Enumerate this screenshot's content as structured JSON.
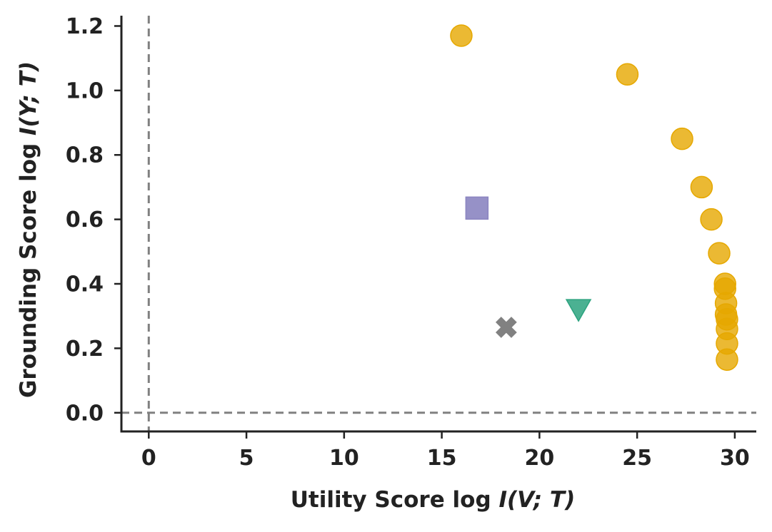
{
  "chart_data": {
    "type": "scatter",
    "xlabel": {
      "prefix": "Utility Score log ",
      "math": "I(V; T)"
    },
    "ylabel": {
      "prefix": "Grounding Score log ",
      "math": "I(Y; T)"
    },
    "xlim": [
      -1.4,
      31.1
    ],
    "ylim": [
      -0.058,
      1.232
    ],
    "xticks": [
      0,
      5,
      10,
      15,
      20,
      25,
      30
    ],
    "yticks": [
      0.0,
      0.2,
      0.4,
      0.6,
      0.8,
      1.0,
      1.2
    ],
    "xtick_labels": [
      "0",
      "5",
      "10",
      "15",
      "20",
      "25",
      "30"
    ],
    "ytick_labels": [
      "0.0",
      "0.2",
      "0.4",
      "0.6",
      "0.8",
      "1.0",
      "1.2"
    ],
    "reference_lines": {
      "vertical_x": 0,
      "horizontal_y": 0,
      "style": "dashed",
      "color": "#808080"
    },
    "grid": false,
    "legend": "none",
    "series": [
      {
        "marker": "circle",
        "color": "#E6A800",
        "points": [
          {
            "x": 16.0,
            "y": 1.17
          },
          {
            "x": 24.5,
            "y": 1.05
          },
          {
            "x": 27.3,
            "y": 0.85
          },
          {
            "x": 28.3,
            "y": 0.7
          },
          {
            "x": 28.8,
            "y": 0.6
          },
          {
            "x": 29.2,
            "y": 0.495
          },
          {
            "x": 29.5,
            "y": 0.4
          },
          {
            "x": 29.5,
            "y": 0.385
          },
          {
            "x": 29.55,
            "y": 0.34
          },
          {
            "x": 29.55,
            "y": 0.305
          },
          {
            "x": 29.6,
            "y": 0.29
          },
          {
            "x": 29.6,
            "y": 0.26
          },
          {
            "x": 29.6,
            "y": 0.215
          },
          {
            "x": 29.6,
            "y": 0.165
          }
        ]
      },
      {
        "marker": "square",
        "color": "#8B85C1",
        "points": [
          {
            "x": 16.8,
            "y": 0.635
          }
        ]
      },
      {
        "marker": "triangle-down",
        "color": "#2CA37F",
        "points": [
          {
            "x": 22.0,
            "y": 0.32
          }
        ]
      },
      {
        "marker": "x",
        "color": "#737373",
        "points": [
          {
            "x": 18.3,
            "y": 0.265
          }
        ]
      }
    ]
  }
}
